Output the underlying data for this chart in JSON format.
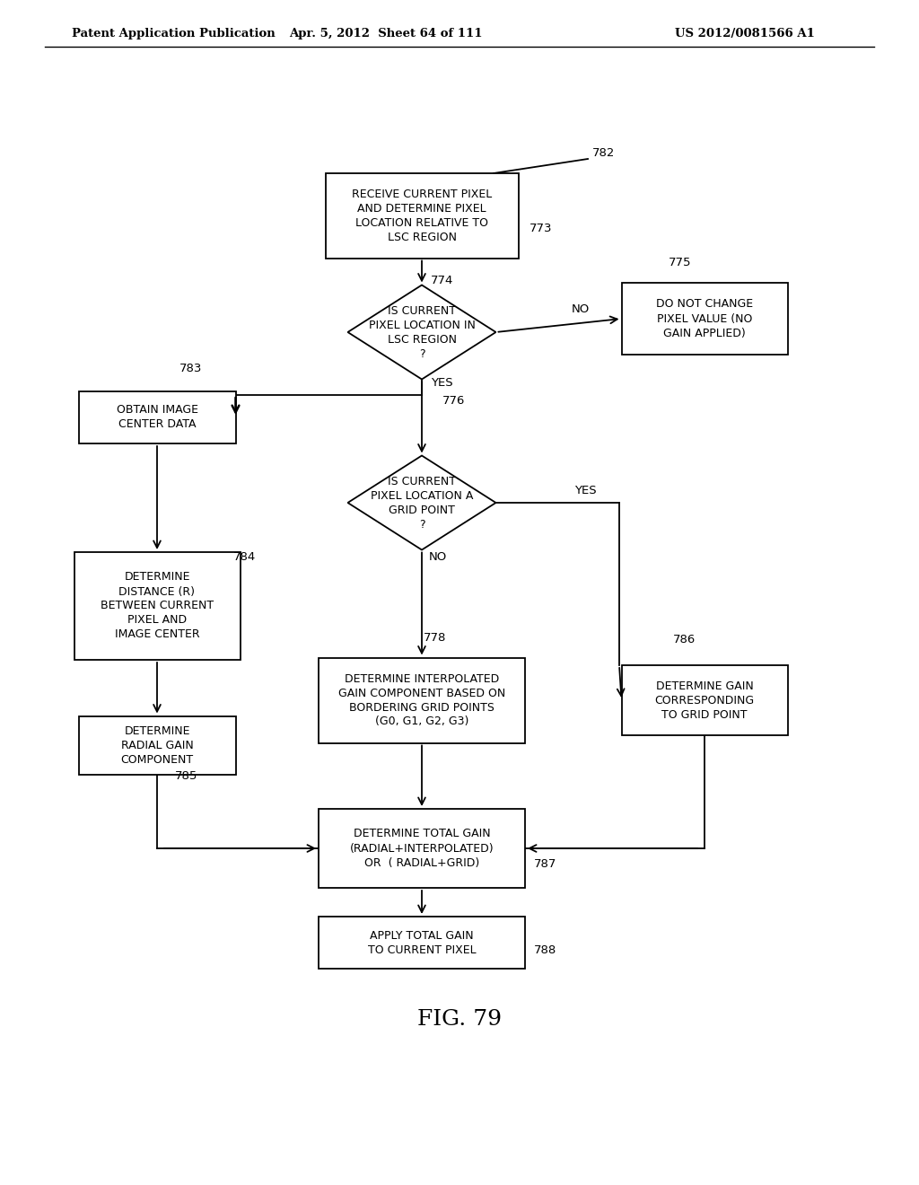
{
  "title": "FIG. 79",
  "header_left": "Patent Application Publication",
  "header_mid": "Apr. 5, 2012  Sheet 64 of 111",
  "header_right": "US 2012/0081566 A1",
  "bg_color": "#ffffff"
}
